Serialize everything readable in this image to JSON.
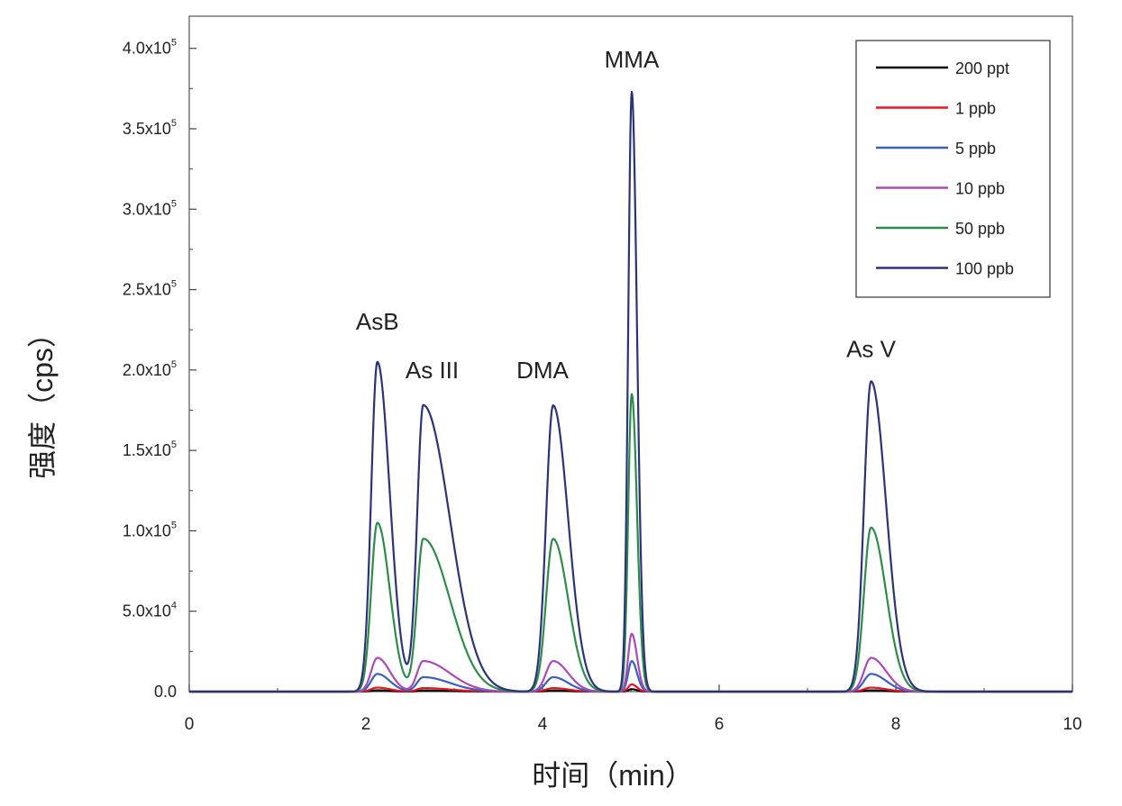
{
  "chart_data": {
    "type": "line",
    "xlabel": "时间（min）",
    "ylabel": "强度（cps）",
    "xlim": [
      0,
      10
    ],
    "ylim": [
      0,
      420000
    ],
    "x_ticks": [
      "0",
      "2",
      "4",
      "6",
      "8",
      "10"
    ],
    "y_ticks": [
      {
        "value": 0,
        "label": "0.0"
      },
      {
        "value": 50000,
        "label": "5.0x10",
        "exp": "4"
      },
      {
        "value": 100000,
        "label": "1.0x10",
        "exp": "5"
      },
      {
        "value": 150000,
        "label": "1.5x10",
        "exp": "5"
      },
      {
        "value": 200000,
        "label": "2.0x10",
        "exp": "5"
      },
      {
        "value": 250000,
        "label": "2.5x10",
        "exp": "5"
      },
      {
        "value": 300000,
        "label": "3.0x10",
        "exp": "5"
      },
      {
        "value": 350000,
        "label": "3.5x10",
        "exp": "5"
      },
      {
        "value": 400000,
        "label": "4.0x10",
        "exp": "5"
      }
    ],
    "grid": false,
    "legend_position": "top-right",
    "peaks": [
      {
        "name": "AsB",
        "rt": 2.13,
        "rise": 0.07,
        "tail": 0.14
      },
      {
        "name": "As III",
        "rt": 2.65,
        "rise": 0.07,
        "tail": 0.3
      },
      {
        "name": "DMA",
        "rt": 4.12,
        "rise": 0.08,
        "tail": 0.17
      },
      {
        "name": "MMA",
        "rt": 5.01,
        "rise": 0.04,
        "tail": 0.06
      },
      {
        "name": "As V",
        "rt": 7.72,
        "rise": 0.08,
        "tail": 0.17
      }
    ],
    "series": [
      {
        "name": "200 ppt",
        "color": "#000000",
        "peak_heights": [
          800,
          700,
          700,
          1500,
          800
        ]
      },
      {
        "name": "1 ppb",
        "color": "#e8161b",
        "peak_heights": [
          2500,
          2200,
          2200,
          4500,
          2500
        ]
      },
      {
        "name": "5 ppb",
        "color": "#3b5fc0",
        "peak_heights": [
          11000,
          9000,
          9000,
          19000,
          11000
        ]
      },
      {
        "name": "10 ppb",
        "color": "#a94bb3",
        "peak_heights": [
          21000,
          19000,
          19000,
          36000,
          21000
        ]
      },
      {
        "name": "50 ppb",
        "color": "#2e8b4a",
        "peak_heights": [
          105000,
          95000,
          95000,
          185000,
          102000
        ]
      },
      {
        "name": "100 ppb",
        "color": "#2b3478",
        "peak_heights": [
          205000,
          178000,
          178000,
          373000,
          193000
        ]
      }
    ],
    "annotations": [
      {
        "text": "AsB",
        "x": 2.13,
        "y": 225000
      },
      {
        "text": "As III",
        "x": 2.75,
        "y": 195000
      },
      {
        "text": "DMA",
        "x": 4.0,
        "y": 195000
      },
      {
        "text": "MMA",
        "x": 5.01,
        "y": 388000
      },
      {
        "text": "As V",
        "x": 7.72,
        "y": 208000
      }
    ]
  }
}
